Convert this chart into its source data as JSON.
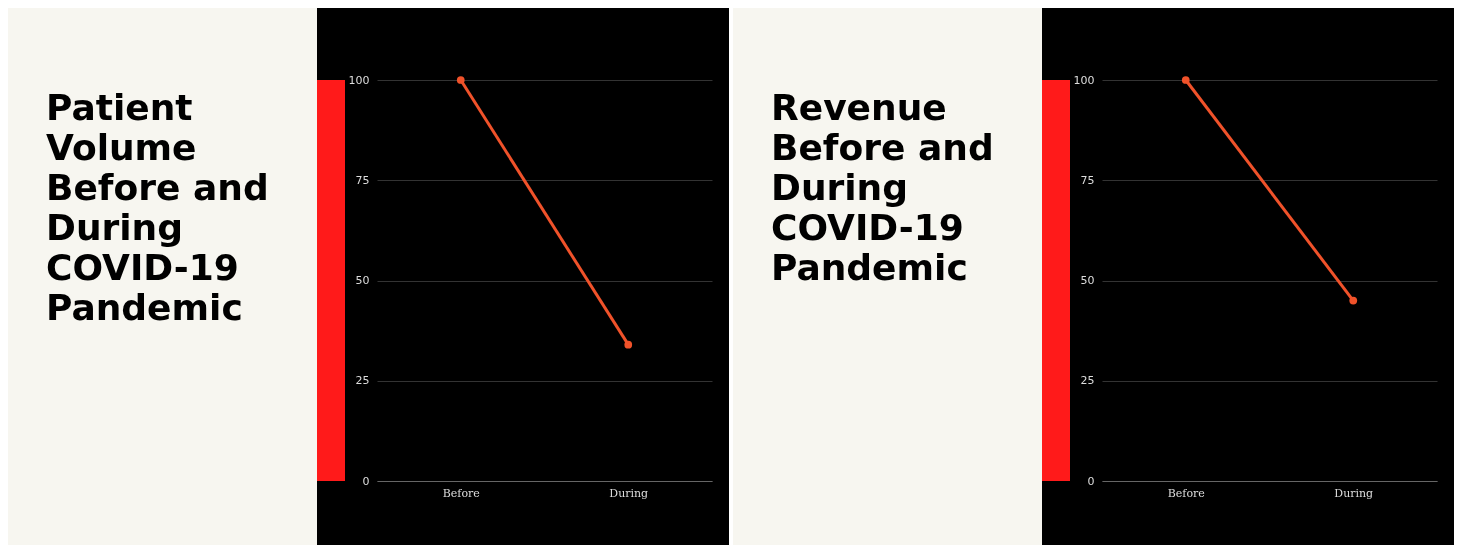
{
  "chart_data": [
    {
      "type": "line",
      "title": "Patient Volume Before and During COVID-19 Pandemic",
      "categories": [
        "Before",
        "During"
      ],
      "series": [
        {
          "color": "#f0522a",
          "values": [
            100,
            34
          ]
        }
      ],
      "ylim": [
        0,
        100
      ],
      "yticks": [
        0,
        25,
        50,
        75,
        100
      ],
      "grid": "y",
      "marker": "circle",
      "line_style": "solid"
    },
    {
      "type": "line",
      "title": "Revenue Before and During COVID-19 Pandemic",
      "categories": [
        "Before",
        "During"
      ],
      "series": [
        {
          "color": "#f0522a",
          "values": [
            100,
            45
          ]
        }
      ],
      "ylim": [
        0,
        100
      ],
      "yticks": [
        0,
        25,
        50,
        75,
        100
      ],
      "grid": "y",
      "marker": "circle",
      "line_style": "solid"
    }
  ]
}
